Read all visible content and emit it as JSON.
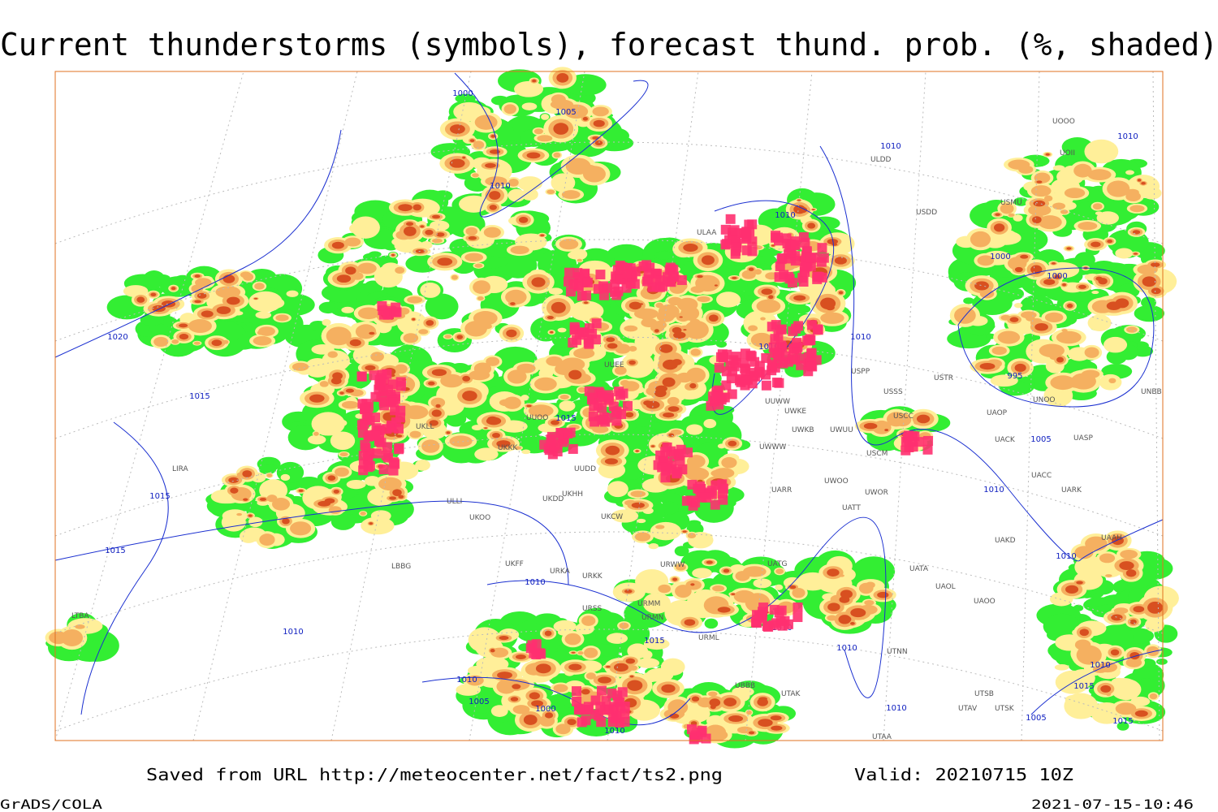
{
  "header": {
    "title": "Current thunderstorms (symbols), forecast thund. prob. (%, shaded)"
  },
  "map": {
    "isobar_labels": [
      1000,
      1005,
      1010,
      1010,
      1010,
      1010,
      1000,
      1000,
      1010,
      1010,
      995,
      1005,
      1010,
      1010,
      1020,
      1015,
      1015,
      1015,
      1015,
      1010,
      1010,
      1015,
      1010,
      1005,
      1000,
      1010,
      1010,
      1010,
      1010,
      1010,
      1015,
      1005,
      1015
    ],
    "stations": [
      "ULDD",
      "USDD",
      "USMU",
      "UOOO",
      "UOII",
      "ULAA",
      "USSS",
      "USTR",
      "UWKE",
      "UWKB",
      "UWUU",
      "USCC",
      "USCM",
      "UWWW",
      "UARR",
      "UWOO",
      "UWOR",
      "UATT",
      "UAKD",
      "UACC",
      "UACK",
      "UAOP",
      "UNOO",
      "UNBB",
      "UASP",
      "UARK",
      "UAAH",
      "UATA",
      "UAOL",
      "UAOO",
      "UATG",
      "UTNN",
      "URML",
      "URMM",
      "URMN",
      "URSS",
      "URKK",
      "URKA",
      "UKFF",
      "LBBG",
      "UKOO",
      "UKDD",
      "UKHH",
      "UKCW",
      "URWW",
      "UUDD",
      "UKKK",
      "UKLL",
      "LIRA",
      "UTAA",
      "UTAK",
      "UTSB",
      "UTAV",
      "UTSK",
      "UBBB",
      "UUEE",
      "ULLI",
      "USPP",
      "UUWW",
      "UUOO",
      "LTBA"
    ]
  },
  "footer": {
    "source": "Saved from URL http://meteocenter.net/fact/ts2.png",
    "valid": "Valid: 20210715 10Z",
    "software": "GrADS/COLA",
    "timestamp": "2021-07-15-10:46"
  }
}
